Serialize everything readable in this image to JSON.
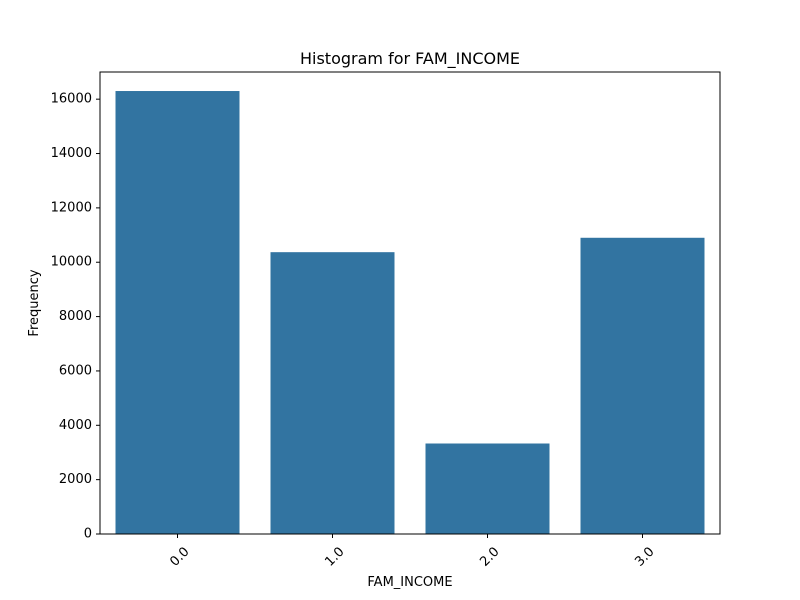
{
  "chart_data": {
    "type": "bar",
    "title": "Histogram for FAM_INCOME",
    "xlabel": "FAM_INCOME",
    "ylabel": "Frequency",
    "categories": [
      "0.0",
      "1.0",
      "2.0",
      "3.0"
    ],
    "values": [
      16300,
      10370,
      3330,
      10900
    ],
    "ylim": [
      0,
      17000
    ],
    "yticks": [
      0,
      2000,
      4000,
      6000,
      8000,
      10000,
      12000,
      14000,
      16000
    ],
    "grid": false,
    "legend": "none",
    "bar_color": "#3274a1",
    "xtick_rotation_deg": 45
  }
}
